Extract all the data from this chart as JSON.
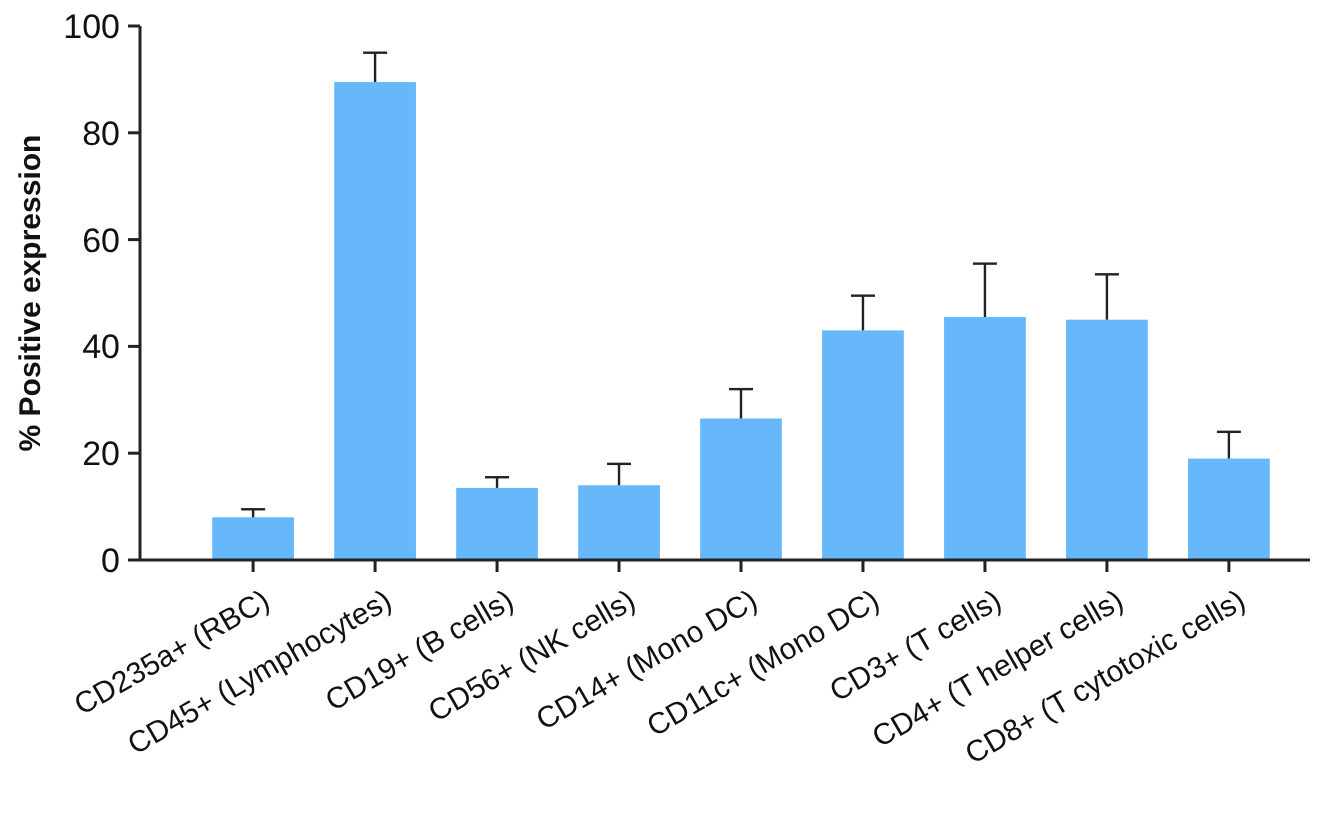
{
  "chart_data": {
    "type": "bar",
    "ylabel": "% Positive expression",
    "categories": [
      "CD235a+ (RBC)",
      "CD45+ (Lymphocytes)",
      "CD19+ (B cells)",
      "CD56+ (NK cells)",
      "CD14+ (Mono DC)",
      "CD11c+ (Mono DC)",
      "CD3+ (T cells)",
      "CD4+ (T helper cells)",
      "CD8+ (T cytotoxic cells)"
    ],
    "values": [
      8,
      89.5,
      13.5,
      14,
      26.5,
      43,
      45.5,
      45,
      19
    ],
    "errors": [
      1.5,
      5.5,
      2,
      4,
      5.5,
      6.5,
      10,
      8.5,
      5
    ],
    "color": "#66b8fb",
    "ylim": [
      0,
      100
    ],
    "yticks": [
      0,
      20,
      40,
      60,
      80,
      100
    ],
    "grid": false
  }
}
